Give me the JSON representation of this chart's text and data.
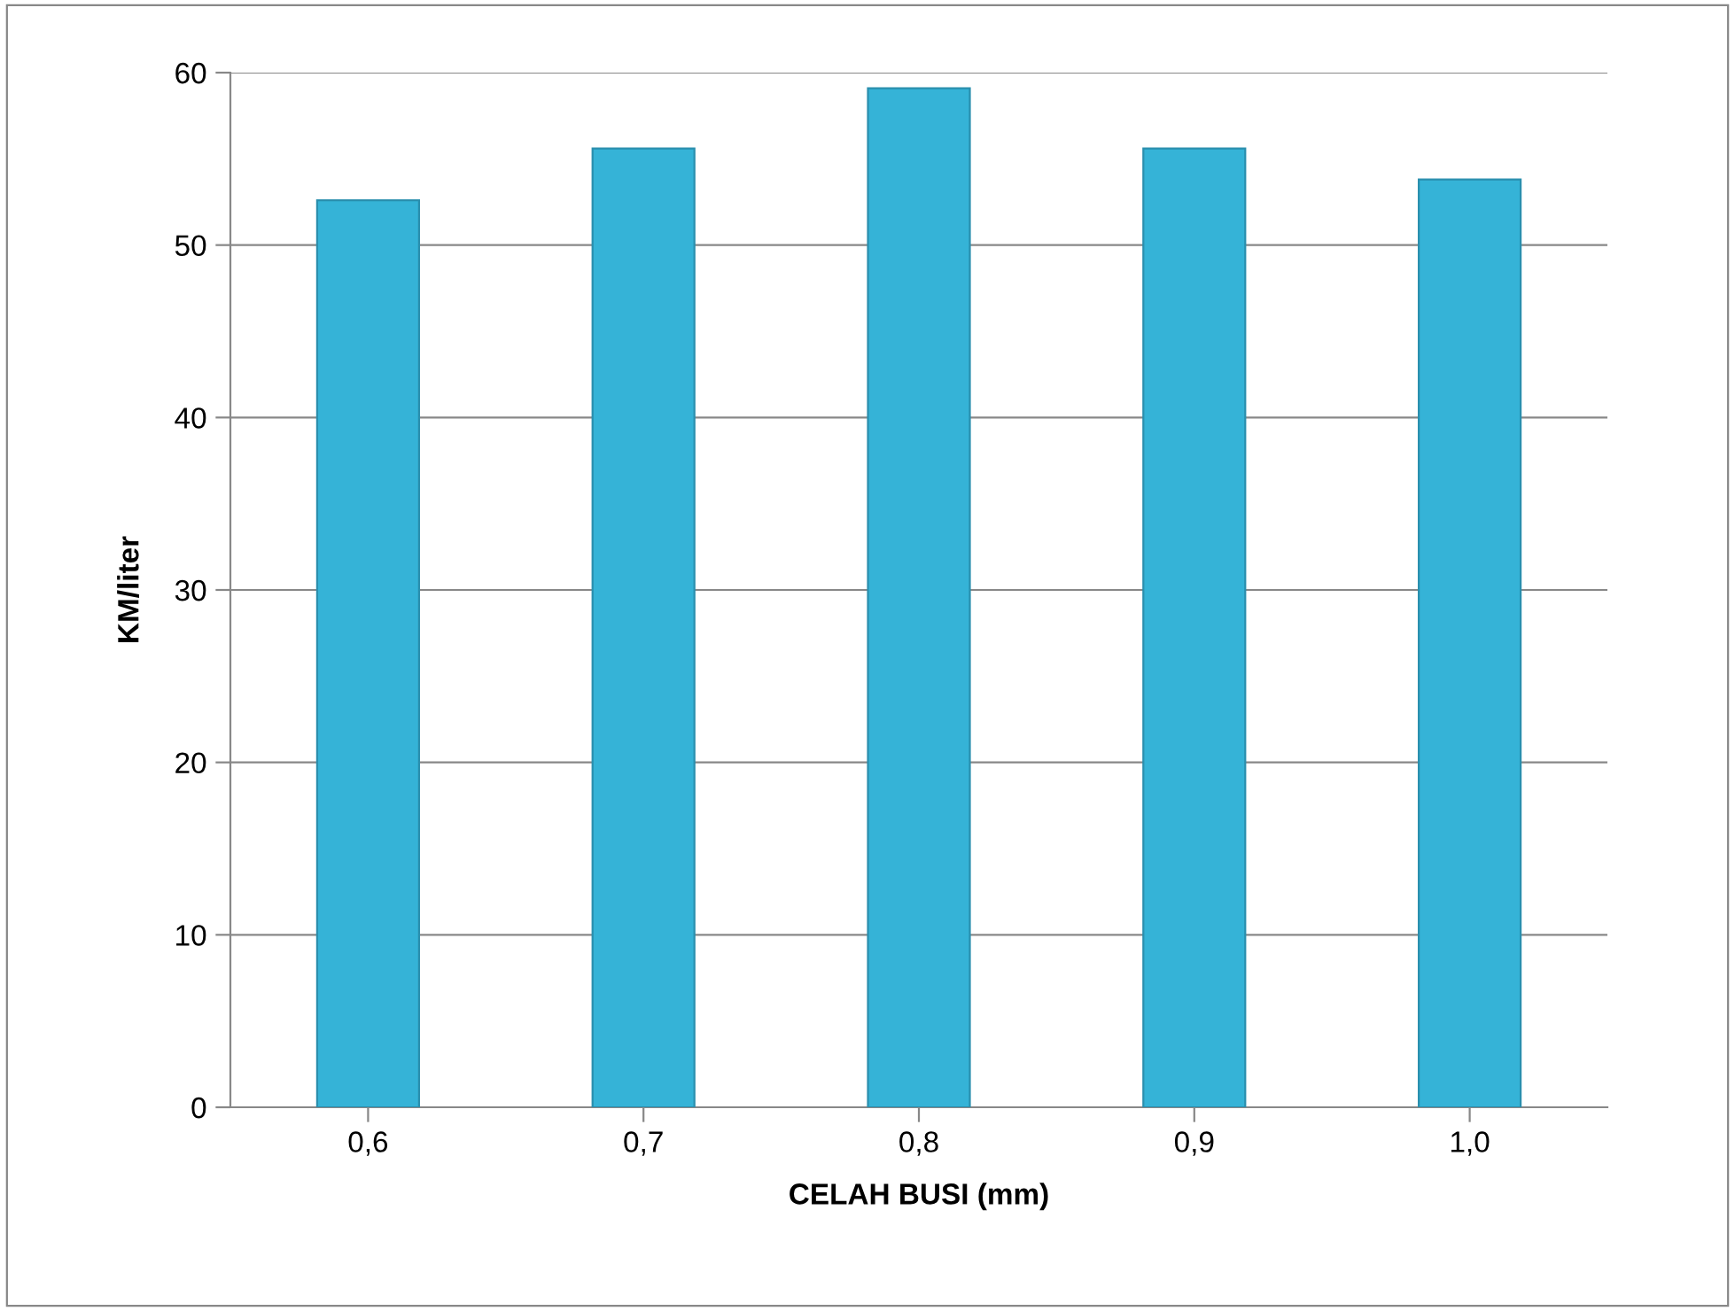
{
  "chart_data": {
    "type": "bar",
    "categories": [
      "0,6",
      "0,7",
      "0,8",
      "0,9",
      "1,0"
    ],
    "values": [
      52.6,
      55.6,
      59.1,
      55.6,
      53.8
    ],
    "color": "#35b3d7",
    "xlabel": "CELAH BUSI (mm)",
    "ylabel": "KM/liter",
    "ylim": [
      0,
      60
    ],
    "yticks": [
      0,
      10,
      20,
      30,
      40,
      50,
      60
    ],
    "grid": "y",
    "legend": false
  }
}
